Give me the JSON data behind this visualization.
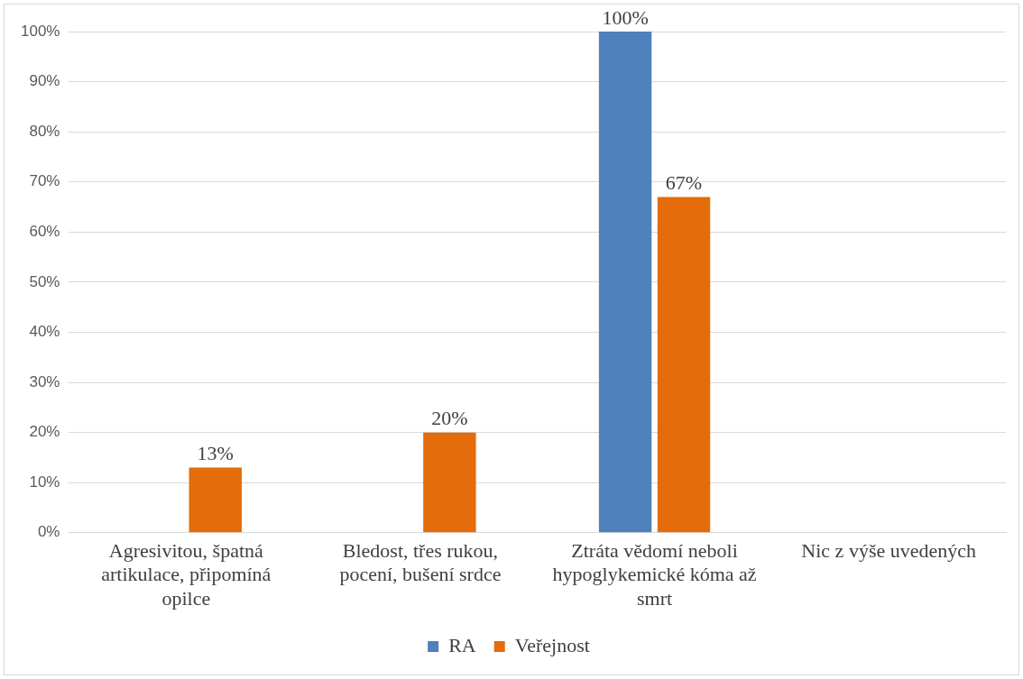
{
  "chart_data": {
    "type": "bar",
    "categories": [
      "Agresivitou, špatná artikulace, připomíná opilce",
      "Bledost, třes rukou, pocení, bušení srdce",
      "Ztráta vědomí neboli hypoglykemické kóma až smrt",
      "Nic z výše uvedených"
    ],
    "series": [
      {
        "name": "RA",
        "color": "#4f81bd",
        "values": [
          0,
          0,
          100,
          0
        ],
        "value_labels": [
          null,
          null,
          "100%",
          null
        ]
      },
      {
        "name": "Veřejnost",
        "color": "#e46c0a",
        "values": [
          13,
          20,
          67,
          0
        ],
        "value_labels": [
          "13%",
          "20%",
          "67%",
          null
        ]
      }
    ],
    "ylim": [
      0,
      100
    ],
    "yticks": [
      {
        "value": 0,
        "label": "0%"
      },
      {
        "value": 10,
        "label": "10%"
      },
      {
        "value": 20,
        "label": "20%"
      },
      {
        "value": 30,
        "label": "30%"
      },
      {
        "value": 40,
        "label": "40%"
      },
      {
        "value": 50,
        "label": "50%"
      },
      {
        "value": 60,
        "label": "60%"
      },
      {
        "value": 70,
        "label": "70%"
      },
      {
        "value": 80,
        "label": "80%"
      },
      {
        "value": 90,
        "label": "90%"
      },
      {
        "value": 100,
        "label": "100%"
      }
    ],
    "grid": "y",
    "legend": "bottom"
  }
}
